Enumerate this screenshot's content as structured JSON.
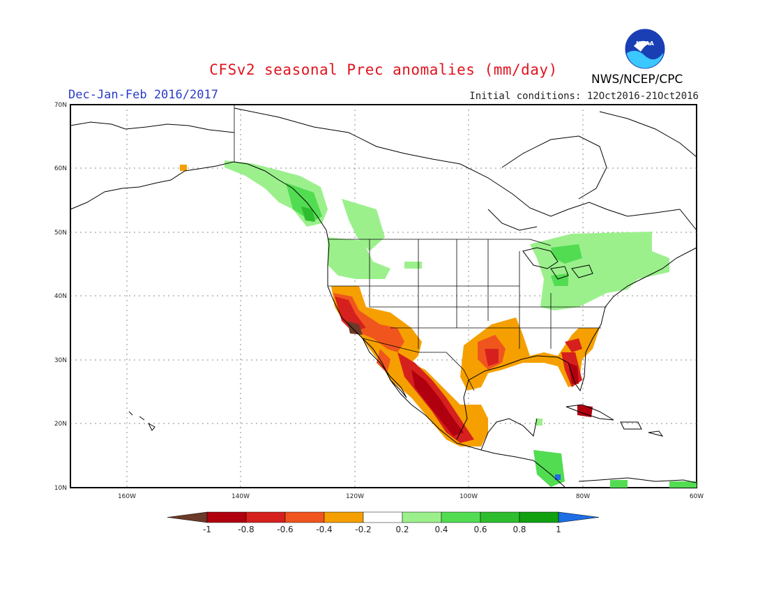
{
  "title": "CFSv2 seasonal Prec anomalies (mm/day)",
  "season": "Dec-Jan-Feb 2016/2017",
  "initial_conditions": "Initial conditions: 12Oct2016-21Oct2016",
  "agency": "NWS/NCEP/CPC",
  "logo_text": "NOAA",
  "map": {
    "lon_range": [
      -172,
      -60
    ],
    "lat_range": [
      10,
      70
    ],
    "lat_labels": [
      "70N",
      "60N",
      "50N",
      "40N",
      "30N",
      "20N",
      "10N"
    ],
    "lon_labels": [
      "160W",
      "140W",
      "120W",
      "100W",
      "80W",
      "60W"
    ],
    "grid": "dotted"
  },
  "colorbar": {
    "labels": [
      "-1",
      "-0.8",
      "-0.6",
      "-0.4",
      "-0.2",
      "0.2",
      "0.4",
      "0.6",
      "0.8",
      "1"
    ],
    "colors": [
      "#6b3a28",
      "#b0000f",
      "#d6201e",
      "#f0551e",
      "#f5a000",
      "#ffffff",
      "#9bf08c",
      "#52dc52",
      "#2ebd2e",
      "#10a010",
      "#1e6ee6"
    ]
  }
}
